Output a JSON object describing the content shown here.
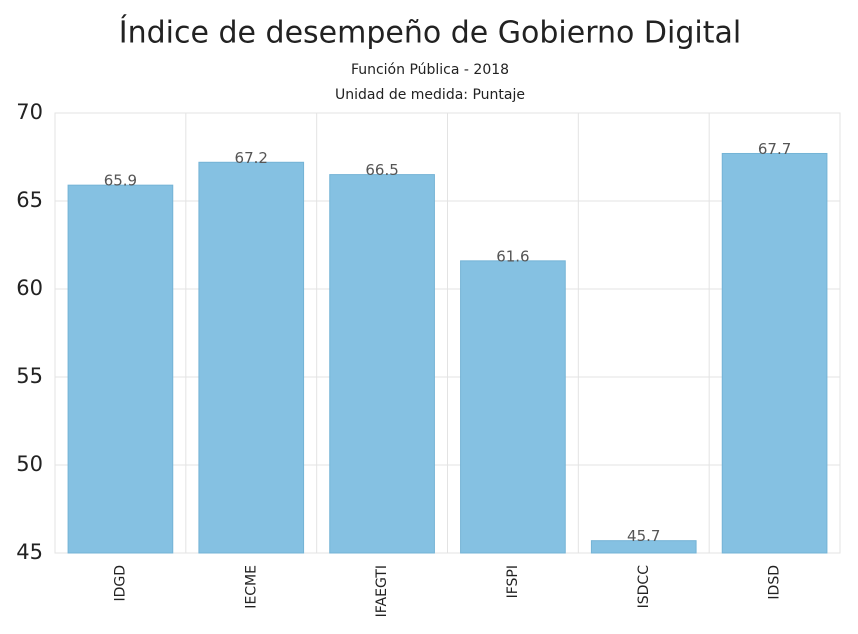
{
  "chart_data": {
    "type": "bar",
    "title": "Índice de desempeño de Gobierno Digital",
    "subtitle": [
      "Función Pública - 2018",
      "Unidad de medida: Puntaje"
    ],
    "categories": [
      "IDGD",
      "IECME",
      "IFAEGTI",
      "IFSPI",
      "ISDCC",
      "IDSD"
    ],
    "values": [
      65.9,
      67.2,
      66.5,
      61.6,
      45.7,
      67.7
    ],
    "color": "#85c1e2",
    "ylim": [
      45,
      70
    ],
    "yticks": [
      45,
      50,
      55,
      60,
      65,
      70
    ],
    "grid": true
  }
}
